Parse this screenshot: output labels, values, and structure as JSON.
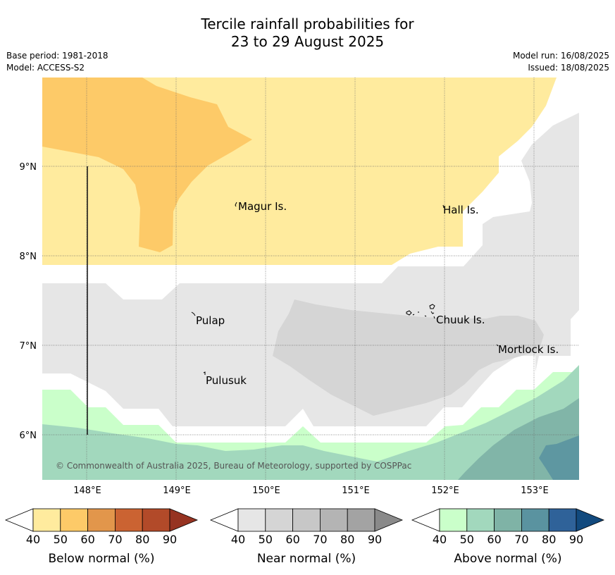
{
  "title_line1": "Tercile rainfall probabilities for",
  "title_line2": "23 to 29 August 2025",
  "base_period": "Base period: 1981-2018",
  "model": "Model: ACCESS-S2",
  "model_run": "Model run: 16/08/2025",
  "issued": "Issued: 18/08/2025",
  "copyright": "© Commonwealth of Australia 2025, Bureau of Meteorology, supported by COSPPac",
  "map": {
    "lon_ticks": [
      "148°E",
      "149°E",
      "150°E",
      "151°E",
      "152°E",
      "153°E"
    ],
    "lat_ticks": [
      "9°N",
      "8°N",
      "7°N",
      "6°N"
    ],
    "places": [
      {
        "name": "Magur Is."
      },
      {
        "name": "Hall Is."
      },
      {
        "name": "Pulap"
      },
      {
        "name": "Chuuk Is."
      },
      {
        "name": "Mortlock Is."
      },
      {
        "name": "Pulusuk"
      }
    ]
  },
  "legends": [
    {
      "title": "Below normal (%)",
      "ticks": [
        "40",
        "50",
        "60",
        "70",
        "80",
        "90"
      ],
      "colors": [
        "#ffeb9e",
        "#fdca68",
        "#e2964b",
        "#cb6332",
        "#b24a29",
        "#963321"
      ]
    },
    {
      "title": "Near normal (%)",
      "ticks": [
        "40",
        "50",
        "60",
        "70",
        "80",
        "90"
      ],
      "colors": [
        "#e6e6e6",
        "#d5d5d5",
        "#c7c7c7",
        "#b4b4b4",
        "#a3a3a3",
        "#8a8a8a"
      ]
    },
    {
      "title": "Above normal (%)",
      "ticks": [
        "40",
        "50",
        "60",
        "70",
        "80",
        "90"
      ],
      "colors": [
        "#caffca",
        "#a2d8bd",
        "#7fb3a6",
        "#5a93a0",
        "#2f6299",
        "#124a7e"
      ]
    }
  ]
}
